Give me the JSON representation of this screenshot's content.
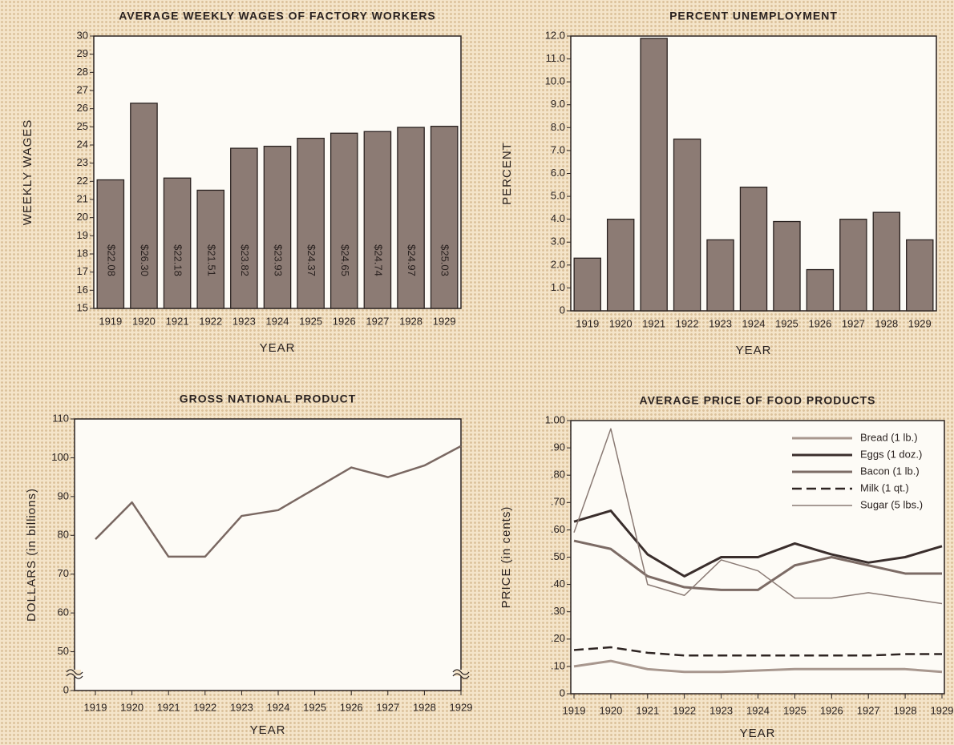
{
  "chart_data": [
    {
      "type": "bar",
      "title": "AVERAGE WEEKLY WAGES OF FACTORY WORKERS",
      "ylabel": "WEEKLY WAGES",
      "xlabel": "YEAR",
      "categories": [
        "1919",
        "1920",
        "1921",
        "1922",
        "1923",
        "1924",
        "1925",
        "1926",
        "1927",
        "1928",
        "1929"
      ],
      "values": [
        22.08,
        26.3,
        22.18,
        21.51,
        23.82,
        23.93,
        24.37,
        24.65,
        24.74,
        24.97,
        25.03
      ],
      "value_labels": [
        "$22.08",
        "$26.30",
        "$22.18",
        "$21.51",
        "$23.82",
        "$23.93",
        "$24.37",
        "$24.65",
        "$24.74",
        "$24.97",
        "$25.03"
      ],
      "color": "#8c7b74",
      "ylim": [
        15,
        30
      ],
      "yticks": [
        15,
        16,
        17,
        18,
        19,
        20,
        21,
        22,
        23,
        24,
        25,
        26,
        27,
        28,
        29,
        30
      ]
    },
    {
      "type": "bar",
      "title": "PERCENT UNEMPLOYMENT",
      "ylabel": "PERCENT",
      "xlabel": "YEAR",
      "categories": [
        "1919",
        "1920",
        "1921",
        "1922",
        "1923",
        "1924",
        "1925",
        "1926",
        "1927",
        "1928",
        "1929"
      ],
      "values": [
        2.3,
        4.0,
        11.9,
        7.5,
        3.1,
        5.4,
        3.9,
        1.8,
        4.0,
        4.3,
        3.1
      ],
      "color": "#8c7b74",
      "ylim": [
        0,
        12
      ],
      "yticks": [
        0,
        {
          "value": 1,
          "label": "1.0"
        },
        {
          "value": 2,
          "label": "2.0"
        },
        {
          "value": 3,
          "label": "3.0"
        },
        {
          "value": 4,
          "label": "4.0"
        },
        {
          "value": 5,
          "label": "5.0"
        },
        {
          "value": 6,
          "label": "6.0"
        },
        {
          "value": 7,
          "label": "7.0"
        },
        {
          "value": 8,
          "label": "8.0"
        },
        {
          "value": 9,
          "label": "9.0"
        },
        {
          "value": 10,
          "label": "10.0"
        },
        {
          "value": 11,
          "label": "11.0"
        },
        {
          "value": 12,
          "label": "12.0"
        }
      ]
    },
    {
      "type": "line",
      "title": "GROSS NATIONAL PRODUCT",
      "ylabel": "DOLLARS (in billions)",
      "xlabel": "YEAR",
      "categories": [
        "1919",
        "1920",
        "1921",
        "1922",
        "1923",
        "1924",
        "1925",
        "1926",
        "1927",
        "1928",
        "1929"
      ],
      "series": [
        {
          "name": "GNP",
          "color": "#7a6862",
          "values": [
            79,
            88.5,
            74.5,
            74.5,
            85,
            86.5,
            92,
            97.5,
            95,
            98,
            103
          ]
        }
      ],
      "ylim": [
        0,
        110
      ],
      "axis_break": [
        0,
        40
      ],
      "yticks": [
        0,
        50,
        60,
        70,
        80,
        90,
        100,
        110
      ]
    },
    {
      "type": "line",
      "title": "AVERAGE PRICE OF FOOD PRODUCTS",
      "ylabel": "PRICE (in cents)",
      "xlabel": "YEAR",
      "legend": "upper right",
      "categories": [
        "1919",
        "1920",
        "1921",
        "1922",
        "1923",
        "1924",
        "1925",
        "1926",
        "1927",
        "1928",
        "1929"
      ],
      "series": [
        {
          "name": "Bread (1 lb.)",
          "color": "#a8978e",
          "width": 3,
          "values": [
            0.1,
            0.12,
            0.09,
            0.08,
            0.08,
            0.085,
            0.09,
            0.09,
            0.09,
            0.09,
            0.08
          ]
        },
        {
          "name": "Eggs (1 doz.)",
          "color": "#3a2e2c",
          "width": 3,
          "values": [
            0.63,
            0.67,
            0.51,
            0.43,
            0.5,
            0.5,
            0.55,
            0.51,
            0.48,
            0.5,
            0.54
          ]
        },
        {
          "name": "Bacon (1 lb.)",
          "color": "#7c6b65",
          "width": 3,
          "values": [
            0.56,
            0.53,
            0.43,
            0.39,
            0.38,
            0.38,
            0.47,
            0.5,
            0.47,
            0.44,
            0.44
          ]
        },
        {
          "name": "Milk (1 qt.)",
          "color": "#2e2422",
          "width": 2.5,
          "dash": true,
          "values": [
            0.16,
            0.17,
            0.15,
            0.14,
            0.14,
            0.14,
            0.14,
            0.14,
            0.14,
            0.145,
            0.145
          ]
        },
        {
          "name": "Sugar (5 lbs.)",
          "color": "#8a7a74",
          "width": 1.5,
          "values": [
            0.59,
            0.97,
            0.4,
            0.36,
            0.49,
            0.45,
            0.35,
            0.35,
            0.37,
            0.35,
            0.33
          ]
        }
      ],
      "ylim": [
        0,
        1
      ],
      "yticks": [
        0,
        {
          "value": 0.1,
          "label": ".10"
        },
        {
          "value": 0.2,
          "label": ".20"
        },
        {
          "value": 0.3,
          "label": ".30"
        },
        {
          "value": 0.4,
          "label": ".40"
        },
        {
          "value": 0.5,
          "label": ".50"
        },
        {
          "value": 0.6,
          "label": ".60"
        },
        {
          "value": 0.7,
          "label": ".70"
        },
        {
          "value": 0.8,
          "label": ".80"
        },
        {
          "value": 0.9,
          "label": ".90"
        },
        {
          "value": 1,
          "label": "1.00"
        }
      ]
    }
  ]
}
